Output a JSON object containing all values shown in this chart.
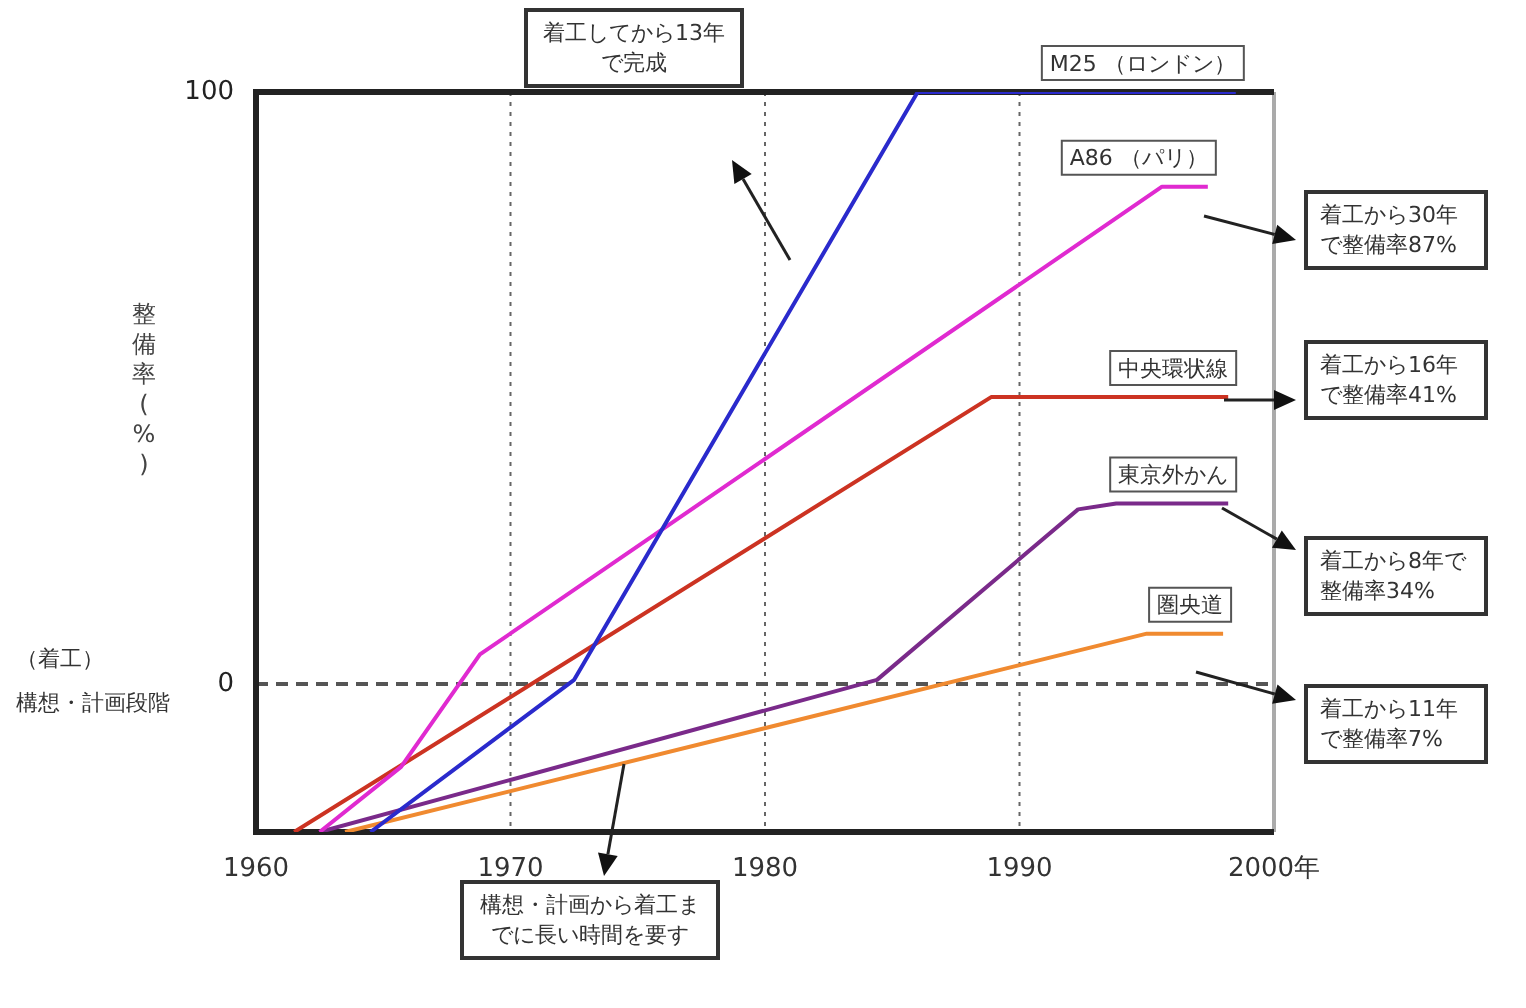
{
  "chart_data": {
    "type": "line",
    "ylabel": "整備率(%)",
    "xlim": [
      1960,
      2000
    ],
    "xticks": [
      1960,
      1970,
      1980,
      1990,
      {
        "value": 2000,
        "label": "2000年"
      }
    ],
    "ylim": [
      -25,
      100
    ],
    "yticks": [
      0,
      100
    ],
    "grid": "x",
    "marker": "none",
    "line_style": "solid",
    "legend": false,
    "ref_lines": [
      {
        "axis": "y",
        "value": 0,
        "line_style": "dashed",
        "color": "#555555"
      }
    ],
    "series": [
      {
        "name": "M25 （ロンドン）",
        "color": "#2a2acc",
        "x": [
          1964.5,
          1972.5,
          1986,
          1998.5
        ],
        "values": [
          -25,
          0.7,
          100,
          100
        ]
      },
      {
        "name": "A86 （パリ）",
        "color": "#e02ad0",
        "x": [
          1962.5,
          1965.7,
          1968.8,
          1995.6,
          1997.4
        ],
        "values": [
          -25,
          -14,
          5,
          84,
          84
        ]
      },
      {
        "name": "中央環状線",
        "color": "#cc3322",
        "x": [
          1961.5,
          1988.9,
          1998.2
        ],
        "values": [
          -25,
          48.5,
          48.5
        ]
      },
      {
        "name": "東京外かん",
        "color": "#7a2a8a",
        "x": [
          1962.5,
          1984.4,
          1992.3,
          1993.8,
          1998.2
        ],
        "values": [
          -25,
          0.7,
          29.5,
          30.5,
          30.5
        ]
      },
      {
        "name": "圏央道",
        "color": "#f08a30",
        "x": [
          1963.5,
          1995,
          1998
        ],
        "values": [
          -25,
          8.5,
          8.5
        ]
      }
    ],
    "annotations": [
      "着工してから13年で完成",
      "着工から30年で整備率87%",
      "着工から16年で整備率41%",
      "着工から8年で整備率34%",
      "着工から11年で整備率7%",
      "構想・計画から着工までに長い時間を要す",
      "（着工）",
      "構想・計画段階"
    ]
  }
}
